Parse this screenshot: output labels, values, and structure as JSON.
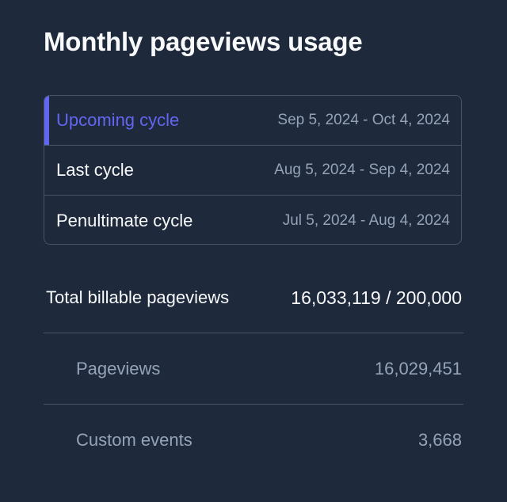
{
  "page": {
    "title": "Monthly pageviews usage"
  },
  "cycles": [
    {
      "name": "Upcoming cycle",
      "range": "Sep 5, 2024 - Oct 4, 2024",
      "active": true
    },
    {
      "name": "Last cycle",
      "range": "Aug 5, 2024 - Sep 4, 2024",
      "active": false
    },
    {
      "name": "Penultimate cycle",
      "range": "Jul 5, 2024 - Aug 4, 2024",
      "active": false
    }
  ],
  "usage": {
    "total_label": "Total billable pageviews",
    "total_value": "16,033,119 / 200,000",
    "pageviews_label": "Pageviews",
    "pageviews_value": "16,029,451",
    "custom_events_label": "Custom events",
    "custom_events_value": "3,668"
  },
  "colors": {
    "background": "#1e293b",
    "accent": "#6366f1",
    "border": "#475569",
    "muted_text": "#94a3b8",
    "text": "#f8fafc"
  }
}
